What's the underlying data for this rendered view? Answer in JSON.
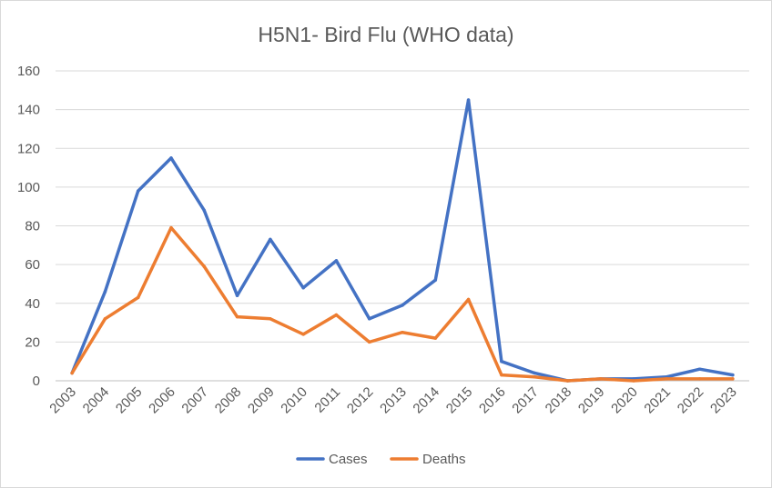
{
  "chart_data": {
    "type": "line",
    "title": "H5N1- Bird Flu (WHO data)",
    "xlabel": "",
    "ylabel": "",
    "categories": [
      "2003",
      "2004",
      "2005",
      "2006",
      "2007",
      "2008",
      "2009",
      "2010",
      "2011",
      "2012",
      "2013",
      "2014",
      "2015",
      "2016",
      "2017",
      "2018",
      "2019",
      "2020",
      "2021",
      "2022",
      "2023"
    ],
    "ylim": [
      0,
      160
    ],
    "yticks": [
      "0",
      "20",
      "40",
      "60",
      "80",
      "100",
      "120",
      "140",
      "160"
    ],
    "grid": true,
    "legend_position": "bottom",
    "series": [
      {
        "name": "Cases",
        "color": "#4472c4",
        "values": [
          4,
          46,
          98,
          115,
          88,
          44,
          73,
          48,
          62,
          32,
          39,
          52,
          145,
          10,
          4,
          0,
          1,
          1,
          2,
          6,
          3
        ]
      },
      {
        "name": "Deaths",
        "color": "#ed7d31",
        "values": [
          4,
          32,
          43,
          79,
          59,
          33,
          32,
          24,
          34,
          20,
          25,
          22,
          42,
          3,
          2,
          0,
          1,
          0,
          1,
          1,
          1
        ]
      }
    ]
  }
}
